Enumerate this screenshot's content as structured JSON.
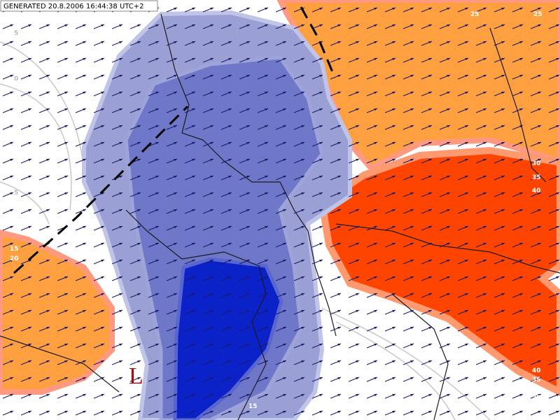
{
  "header": {
    "generated": "GENERATED 20.8.2006 16:44:38 UTC+2"
  },
  "low_marker": "L",
  "contour_labels": [
    "25",
    "25",
    "30",
    "35",
    "40",
    "40",
    "35",
    "30",
    "25",
    "5",
    "0",
    "5",
    "15",
    "20",
    "15"
  ]
}
